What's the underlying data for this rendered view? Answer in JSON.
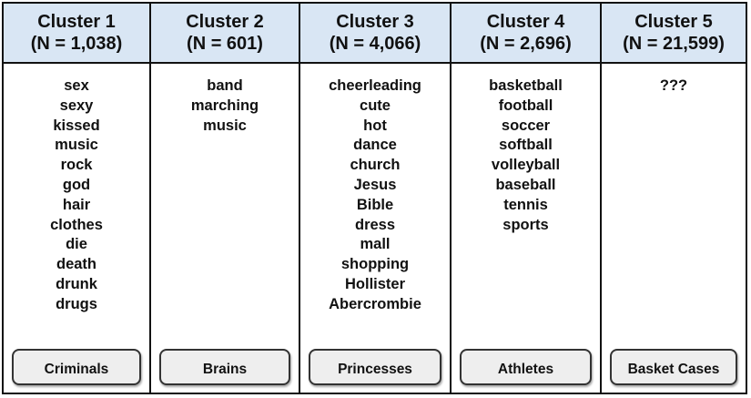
{
  "clusters": [
    {
      "title": "Cluster 1",
      "count": "(N = 1,038)",
      "terms": [
        "sex",
        "sexy",
        "kissed",
        "music",
        "rock",
        "god",
        "hair",
        "clothes",
        "die",
        "death",
        "drunk",
        "drugs"
      ],
      "label": "Criminals"
    },
    {
      "title": "Cluster 2",
      "count": "(N = 601)",
      "terms": [
        "band",
        "marching",
        "music"
      ],
      "label": "Brains"
    },
    {
      "title": "Cluster 3",
      "count": "(N = 4,066)",
      "terms": [
        "cheerleading",
        "cute",
        "hot",
        "dance",
        "church",
        "Jesus",
        "Bible",
        "dress",
        "mall",
        "shopping",
        "Hollister",
        "Abercrombie"
      ],
      "label": "Princesses"
    },
    {
      "title": "Cluster 4",
      "count": "(N = 2,696)",
      "terms": [
        "basketball",
        "football",
        "soccer",
        "softball",
        "volleyball",
        "baseball",
        "tennis",
        "sports"
      ],
      "label": "Athletes"
    },
    {
      "title": "Cluster 5",
      "count": "(N = 21,599)",
      "terms": [
        "???"
      ],
      "label": "Basket Cases"
    }
  ],
  "colors": {
    "header_bg": "#d9e6f4",
    "label_bg": "#eeeeee",
    "border": "#111111"
  }
}
